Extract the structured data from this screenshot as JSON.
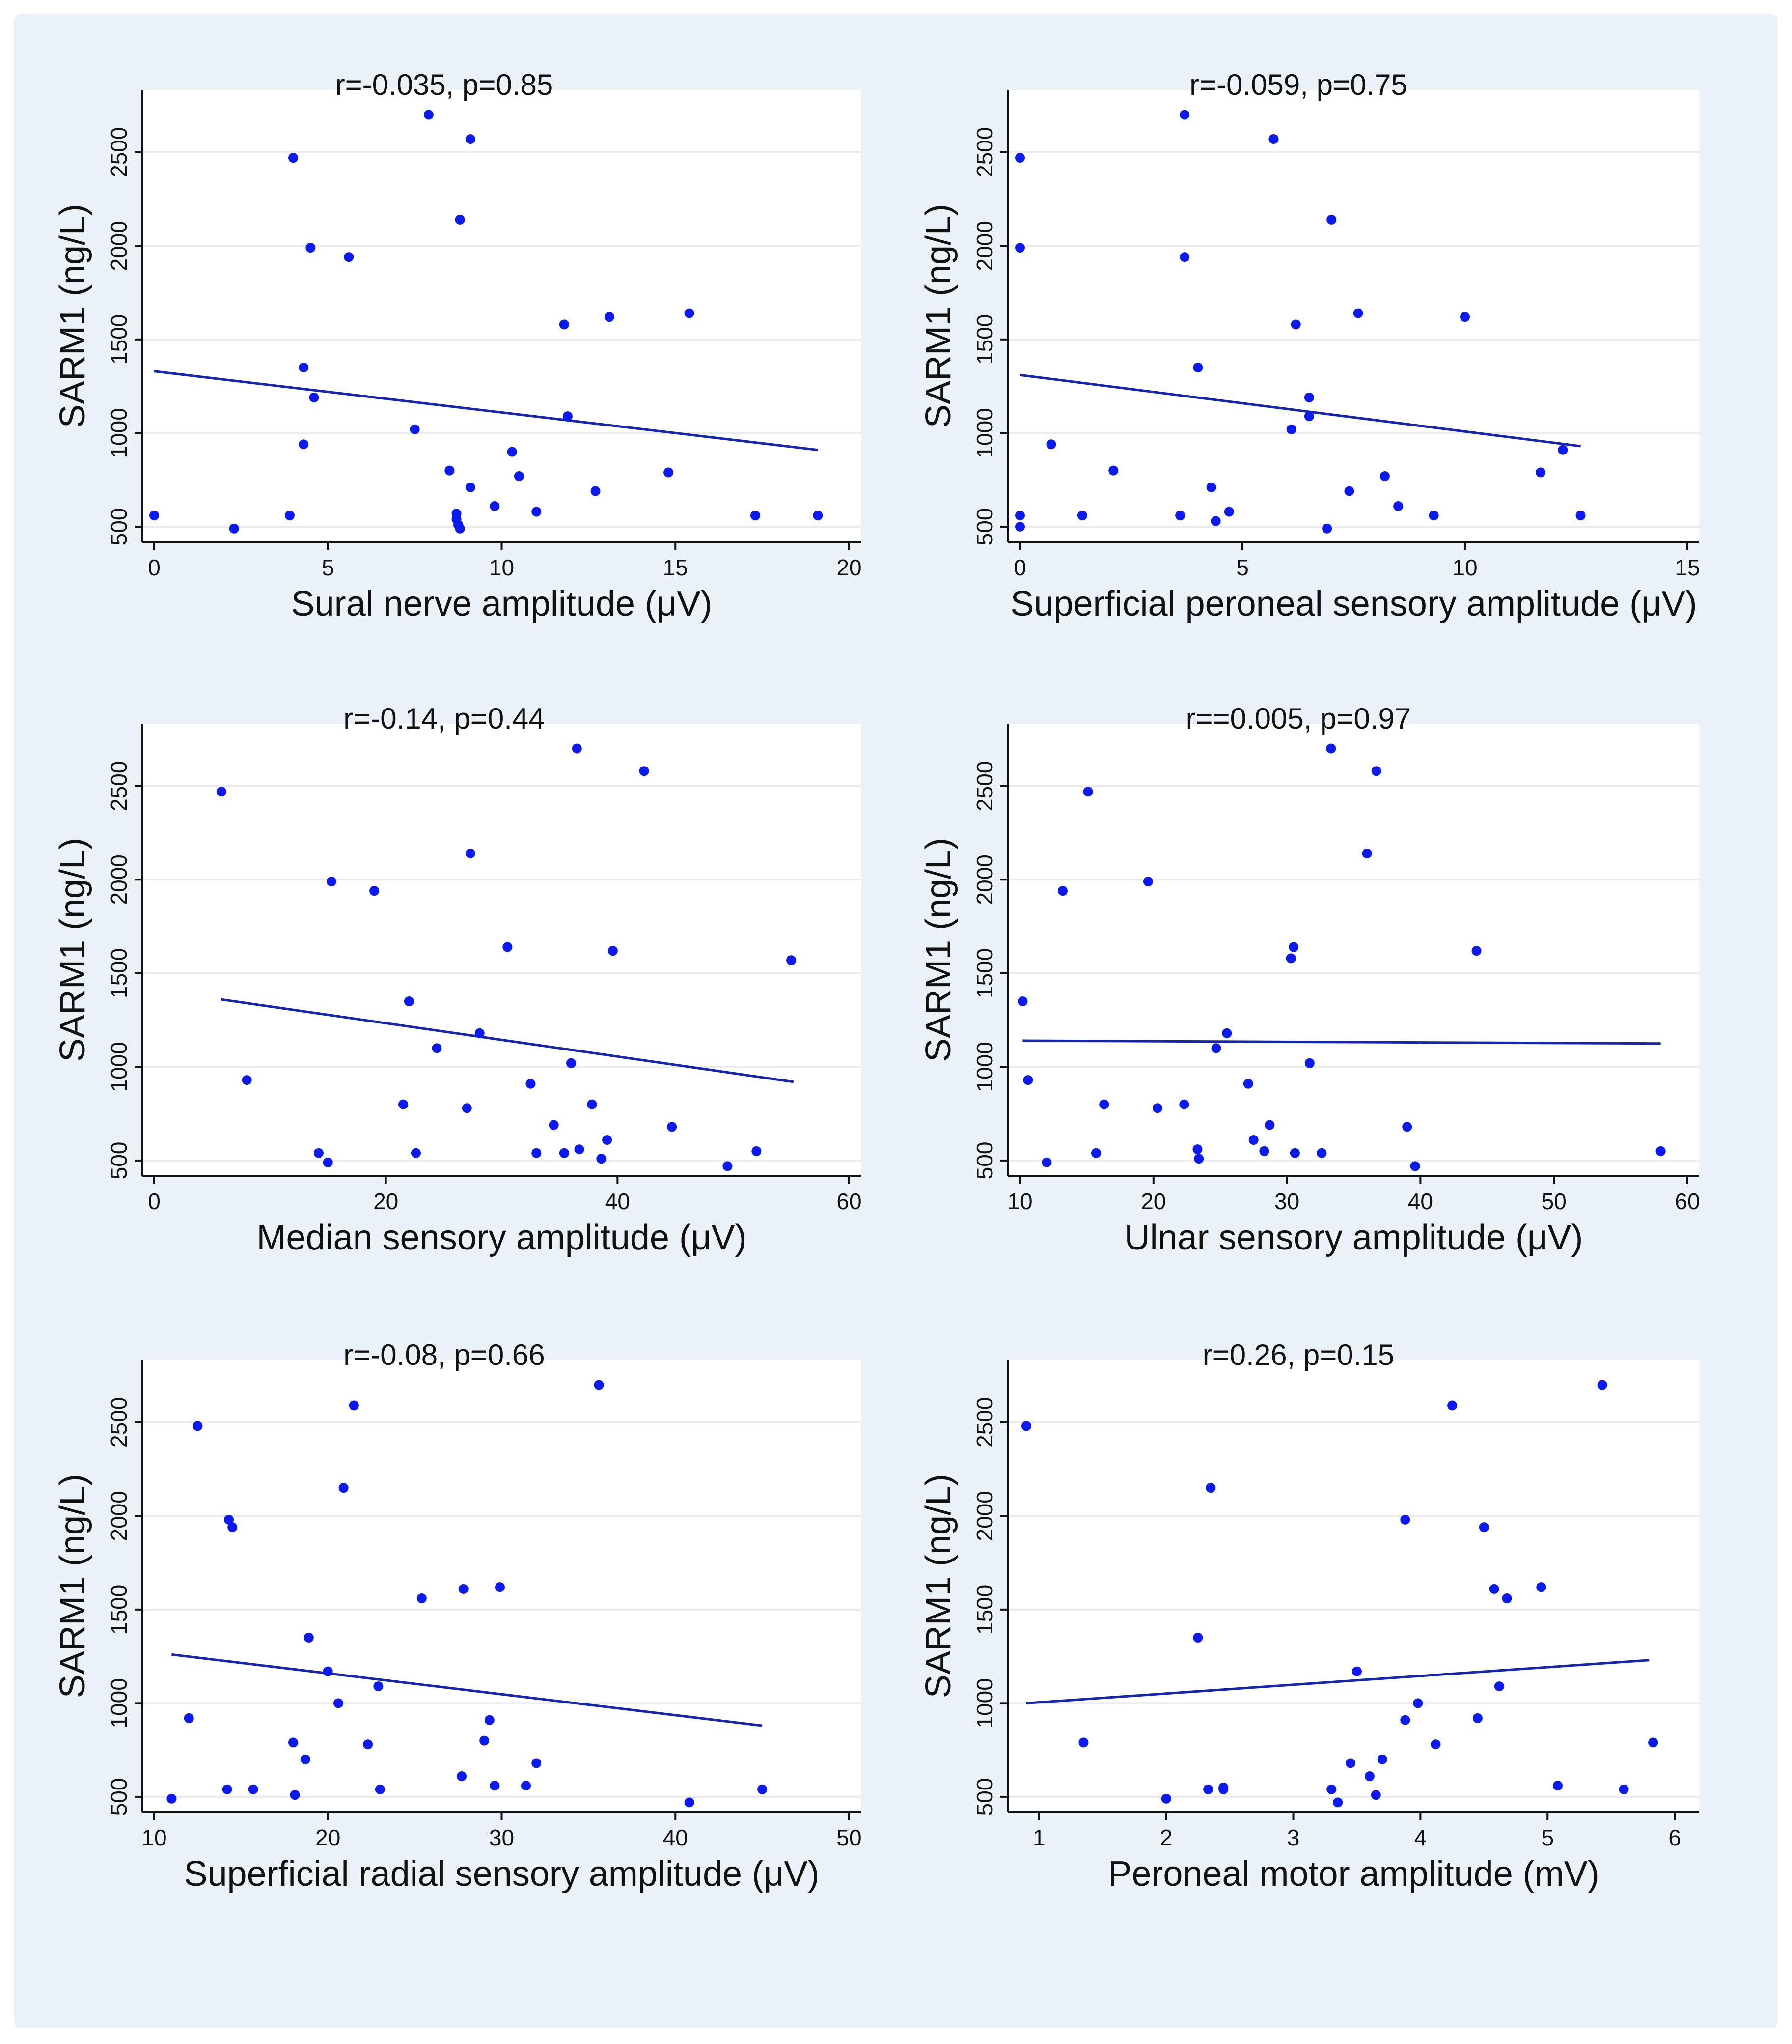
{
  "figure": {
    "dot_color": "#0b1bf0",
    "line_color": "#1525b0",
    "background": "#eaf1f7"
  },
  "chart_data": [
    {
      "type": "scatter",
      "title": "r=-0.035, p=0.85",
      "xlabel": "Sural nerve amplitude (μV)",
      "ylabel": "SARM1 (ng/L)",
      "xlim": [
        0,
        20
      ],
      "ylim": [
        450,
        2780
      ],
      "xticks": [
        0,
        5,
        10,
        15,
        20
      ],
      "yticks": [
        500,
        1000,
        1500,
        2000,
        2500
      ],
      "fit_line": {
        "x": [
          0,
          19.1
        ],
        "y": [
          1330,
          910
        ]
      },
      "points": [
        {
          "x": 0,
          "y": 560
        },
        {
          "x": 2.3,
          "y": 490
        },
        {
          "x": 3.9,
          "y": 560
        },
        {
          "x": 4.0,
          "y": 2470
        },
        {
          "x": 4.3,
          "y": 940
        },
        {
          "x": 4.3,
          "y": 1350
        },
        {
          "x": 4.5,
          "y": 1990
        },
        {
          "x": 4.6,
          "y": 1190
        },
        {
          "x": 5.6,
          "y": 1940
        },
        {
          "x": 7.5,
          "y": 1020
        },
        {
          "x": 7.9,
          "y": 2700
        },
        {
          "x": 8.5,
          "y": 800
        },
        {
          "x": 8.7,
          "y": 570
        },
        {
          "x": 8.7,
          "y": 540
        },
        {
          "x": 8.75,
          "y": 510
        },
        {
          "x": 8.8,
          "y": 490
        },
        {
          "x": 8.8,
          "y": 2140
        },
        {
          "x": 9.1,
          "y": 2570
        },
        {
          "x": 9.1,
          "y": 710
        },
        {
          "x": 9.8,
          "y": 610
        },
        {
          "x": 10.3,
          "y": 900
        },
        {
          "x": 10.5,
          "y": 770
        },
        {
          "x": 11.0,
          "y": 580
        },
        {
          "x": 11.8,
          "y": 1580
        },
        {
          "x": 11.9,
          "y": 1090
        },
        {
          "x": 12.7,
          "y": 690
        },
        {
          "x": 13.1,
          "y": 1620
        },
        {
          "x": 14.8,
          "y": 790
        },
        {
          "x": 15.4,
          "y": 1640
        },
        {
          "x": 17.3,
          "y": 560
        },
        {
          "x": 19.1,
          "y": 560
        }
      ]
    },
    {
      "type": "scatter",
      "title": "r=-0.059, p=0.75",
      "xlabel": "Superficial peroneal sensory amplitude (μV)",
      "ylabel": "SARM1 (ng/L)",
      "xlim": [
        0,
        15
      ],
      "ylim": [
        450,
        2780
      ],
      "xticks": [
        0,
        5,
        10,
        15
      ],
      "yticks": [
        500,
        1000,
        1500,
        2000,
        2500
      ],
      "fit_line": {
        "x": [
          0,
          12.6
        ],
        "y": [
          1310,
          930
        ]
      },
      "points": [
        {
          "x": 0,
          "y": 2470
        },
        {
          "x": 0,
          "y": 1990
        },
        {
          "x": 0,
          "y": 560
        },
        {
          "x": 0,
          "y": 500
        },
        {
          "x": 0.7,
          "y": 940
        },
        {
          "x": 1.4,
          "y": 560
        },
        {
          "x": 2.1,
          "y": 800
        },
        {
          "x": 3.6,
          "y": 560
        },
        {
          "x": 3.7,
          "y": 2700
        },
        {
          "x": 3.7,
          "y": 1940
        },
        {
          "x": 4.0,
          "y": 1350
        },
        {
          "x": 4.3,
          "y": 710
        },
        {
          "x": 4.4,
          "y": 530
        },
        {
          "x": 4.7,
          "y": 580
        },
        {
          "x": 5.7,
          "y": 2570
        },
        {
          "x": 6.1,
          "y": 1020
        },
        {
          "x": 6.2,
          "y": 1580
        },
        {
          "x": 6.5,
          "y": 1190
        },
        {
          "x": 6.5,
          "y": 1090
        },
        {
          "x": 6.9,
          "y": 490
        },
        {
          "x": 7.0,
          "y": 2140
        },
        {
          "x": 7.4,
          "y": 690
        },
        {
          "x": 7.6,
          "y": 1640
        },
        {
          "x": 8.2,
          "y": 770
        },
        {
          "x": 8.5,
          "y": 610
        },
        {
          "x": 9.3,
          "y": 560
        },
        {
          "x": 10.0,
          "y": 1620
        },
        {
          "x": 11.7,
          "y": 790
        },
        {
          "x": 12.2,
          "y": 910
        },
        {
          "x": 12.6,
          "y": 560
        }
      ]
    },
    {
      "type": "scatter",
      "title": "r=-0.14, p=0.44",
      "xlabel": "Median sensory amplitude (μV)",
      "ylabel": "SARM1 (ng/L)",
      "xlim": [
        0,
        60
      ],
      "ylim": [
        450,
        2780
      ],
      "xticks": [
        0,
        20,
        40,
        60
      ],
      "yticks": [
        500,
        1000,
        1500,
        2000,
        2500
      ],
      "fit_line": {
        "x": [
          5.8,
          55.2
        ],
        "y": [
          1360,
          920
        ]
      },
      "points": [
        {
          "x": 5.8,
          "y": 2470
        },
        {
          "x": 8.0,
          "y": 930
        },
        {
          "x": 14.2,
          "y": 540
        },
        {
          "x": 15.0,
          "y": 490
        },
        {
          "x": 15.3,
          "y": 1990
        },
        {
          "x": 19.0,
          "y": 1940
        },
        {
          "x": 21.5,
          "y": 800
        },
        {
          "x": 22.0,
          "y": 1350
        },
        {
          "x": 22.6,
          "y": 540
        },
        {
          "x": 24.4,
          "y": 1100
        },
        {
          "x": 27.0,
          "y": 780
        },
        {
          "x": 27.3,
          "y": 2140
        },
        {
          "x": 28.1,
          "y": 1180
        },
        {
          "x": 30.5,
          "y": 1640
        },
        {
          "x": 32.5,
          "y": 910
        },
        {
          "x": 33.0,
          "y": 540
        },
        {
          "x": 34.5,
          "y": 690
        },
        {
          "x": 35.4,
          "y": 540
        },
        {
          "x": 36.0,
          "y": 1020
        },
        {
          "x": 36.5,
          "y": 2700
        },
        {
          "x": 36.7,
          "y": 560
        },
        {
          "x": 37.8,
          "y": 800
        },
        {
          "x": 38.6,
          "y": 510
        },
        {
          "x": 39.1,
          "y": 610
        },
        {
          "x": 39.6,
          "y": 1620
        },
        {
          "x": 42.3,
          "y": 2580
        },
        {
          "x": 44.7,
          "y": 680
        },
        {
          "x": 49.5,
          "y": 470
        },
        {
          "x": 52.0,
          "y": 550
        },
        {
          "x": 55.0,
          "y": 1570
        }
      ]
    },
    {
      "type": "scatter",
      "title": "r==0.005, p=0.97",
      "xlabel": "Ulnar sensory amplitude (μV)",
      "ylabel": "SARM1 (ng/L)",
      "xlim": [
        10,
        60
      ],
      "ylim": [
        450,
        2780
      ],
      "xticks": [
        10,
        20,
        30,
        40,
        50,
        60
      ],
      "yticks": [
        500,
        1000,
        1500,
        2000,
        2500
      ],
      "fit_line": {
        "x": [
          10.2,
          58.0
        ],
        "y": [
          1140,
          1125
        ]
      },
      "points": [
        {
          "x": 10.2,
          "y": 1350
        },
        {
          "x": 10.6,
          "y": 930
        },
        {
          "x": 12.0,
          "y": 490
        },
        {
          "x": 13.2,
          "y": 1940
        },
        {
          "x": 15.1,
          "y": 2470
        },
        {
          "x": 15.7,
          "y": 540
        },
        {
          "x": 16.3,
          "y": 800
        },
        {
          "x": 19.6,
          "y": 1990
        },
        {
          "x": 20.3,
          "y": 780
        },
        {
          "x": 22.3,
          "y": 800
        },
        {
          "x": 23.3,
          "y": 560
        },
        {
          "x": 23.4,
          "y": 510
        },
        {
          "x": 24.7,
          "y": 1100
        },
        {
          "x": 25.5,
          "y": 1180
        },
        {
          "x": 27.1,
          "y": 910
        },
        {
          "x": 27.5,
          "y": 610
        },
        {
          "x": 28.3,
          "y": 550
        },
        {
          "x": 28.7,
          "y": 690
        },
        {
          "x": 30.3,
          "y": 1580
        },
        {
          "x": 30.5,
          "y": 1640
        },
        {
          "x": 30.6,
          "y": 540
        },
        {
          "x": 31.7,
          "y": 1020
        },
        {
          "x": 32.6,
          "y": 540
        },
        {
          "x": 33.3,
          "y": 2700
        },
        {
          "x": 36.0,
          "y": 2140
        },
        {
          "x": 36.7,
          "y": 2580
        },
        {
          "x": 39.0,
          "y": 680
        },
        {
          "x": 39.6,
          "y": 470
        },
        {
          "x": 44.2,
          "y": 1620
        },
        {
          "x": 58.0,
          "y": 550
        }
      ]
    },
    {
      "type": "scatter",
      "title": "r=-0.08, p=0.66",
      "xlabel": "Superficial radial sensory amplitude (μV)",
      "ylabel": "SARM1 (ng/L)",
      "xlim": [
        10,
        50
      ],
      "ylim": [
        450,
        2780
      ],
      "xticks": [
        10,
        20,
        30,
        40,
        50
      ],
      "yticks": [
        500,
        1000,
        1500,
        2000,
        2500
      ],
      "fit_line": {
        "x": [
          11.0,
          45.0
        ],
        "y": [
          1260,
          880
        ]
      },
      "points": [
        {
          "x": 11.0,
          "y": 490
        },
        {
          "x": 12.0,
          "y": 920
        },
        {
          "x": 12.5,
          "y": 2480
        },
        {
          "x": 14.2,
          "y": 540
        },
        {
          "x": 14.3,
          "y": 1980
        },
        {
          "x": 14.5,
          "y": 1940
        },
        {
          "x": 15.7,
          "y": 540
        },
        {
          "x": 18.0,
          "y": 790
        },
        {
          "x": 18.1,
          "y": 510
        },
        {
          "x": 18.7,
          "y": 700
        },
        {
          "x": 18.9,
          "y": 1350
        },
        {
          "x": 20.0,
          "y": 1170
        },
        {
          "x": 20.6,
          "y": 1000
        },
        {
          "x": 20.9,
          "y": 2150
        },
        {
          "x": 21.5,
          "y": 2590
        },
        {
          "x": 22.3,
          "y": 780
        },
        {
          "x": 22.9,
          "y": 1090
        },
        {
          "x": 23.0,
          "y": 540
        },
        {
          "x": 25.4,
          "y": 1560
        },
        {
          "x": 27.7,
          "y": 610
        },
        {
          "x": 27.8,
          "y": 1610
        },
        {
          "x": 29.0,
          "y": 800
        },
        {
          "x": 29.3,
          "y": 910
        },
        {
          "x": 29.6,
          "y": 560
        },
        {
          "x": 29.9,
          "y": 1620
        },
        {
          "x": 31.4,
          "y": 560
        },
        {
          "x": 32.0,
          "y": 680
        },
        {
          "x": 35.6,
          "y": 2700
        },
        {
          "x": 40.8,
          "y": 470
        },
        {
          "x": 45.0,
          "y": 540
        }
      ]
    },
    {
      "type": "scatter",
      "title": "r=0.26, p=0.15",
      "xlabel": "Peroneal motor amplitude (mV)",
      "ylabel": "SARM1 (ng/L)",
      "xlim": [
        0.85,
        6.1
      ],
      "ylim": [
        450,
        2780
      ],
      "xticks": [
        1,
        2,
        3,
        4,
        5,
        6
      ],
      "yticks": [
        500,
        1000,
        1500,
        2000,
        2500
      ],
      "fit_line": {
        "x": [
          0.9,
          5.8
        ],
        "y": [
          1000,
          1230
        ]
      },
      "points": [
        {
          "x": 0.9,
          "y": 2480
        },
        {
          "x": 1.35,
          "y": 790
        },
        {
          "x": 2.0,
          "y": 490
        },
        {
          "x": 2.25,
          "y": 1350
        },
        {
          "x": 2.33,
          "y": 540
        },
        {
          "x": 2.35,
          "y": 2150
        },
        {
          "x": 2.45,
          "y": 550
        },
        {
          "x": 2.45,
          "y": 540
        },
        {
          "x": 3.3,
          "y": 540
        },
        {
          "x": 3.35,
          "y": 470
        },
        {
          "x": 3.45,
          "y": 680
        },
        {
          "x": 3.5,
          "y": 1170
        },
        {
          "x": 3.6,
          "y": 610
        },
        {
          "x": 3.65,
          "y": 510
        },
        {
          "x": 3.7,
          "y": 700
        },
        {
          "x": 3.88,
          "y": 910
        },
        {
          "x": 3.88,
          "y": 1980
        },
        {
          "x": 3.98,
          "y": 1000
        },
        {
          "x": 4.12,
          "y": 780
        },
        {
          "x": 4.25,
          "y": 2590
        },
        {
          "x": 4.45,
          "y": 920
        },
        {
          "x": 4.5,
          "y": 1940
        },
        {
          "x": 4.58,
          "y": 1610
        },
        {
          "x": 4.62,
          "y": 1090
        },
        {
          "x": 4.68,
          "y": 1560
        },
        {
          "x": 4.95,
          "y": 1620
        },
        {
          "x": 5.08,
          "y": 560
        },
        {
          "x": 5.43,
          "y": 2700
        },
        {
          "x": 5.6,
          "y": 540
        },
        {
          "x": 5.83,
          "y": 790
        }
      ]
    }
  ]
}
